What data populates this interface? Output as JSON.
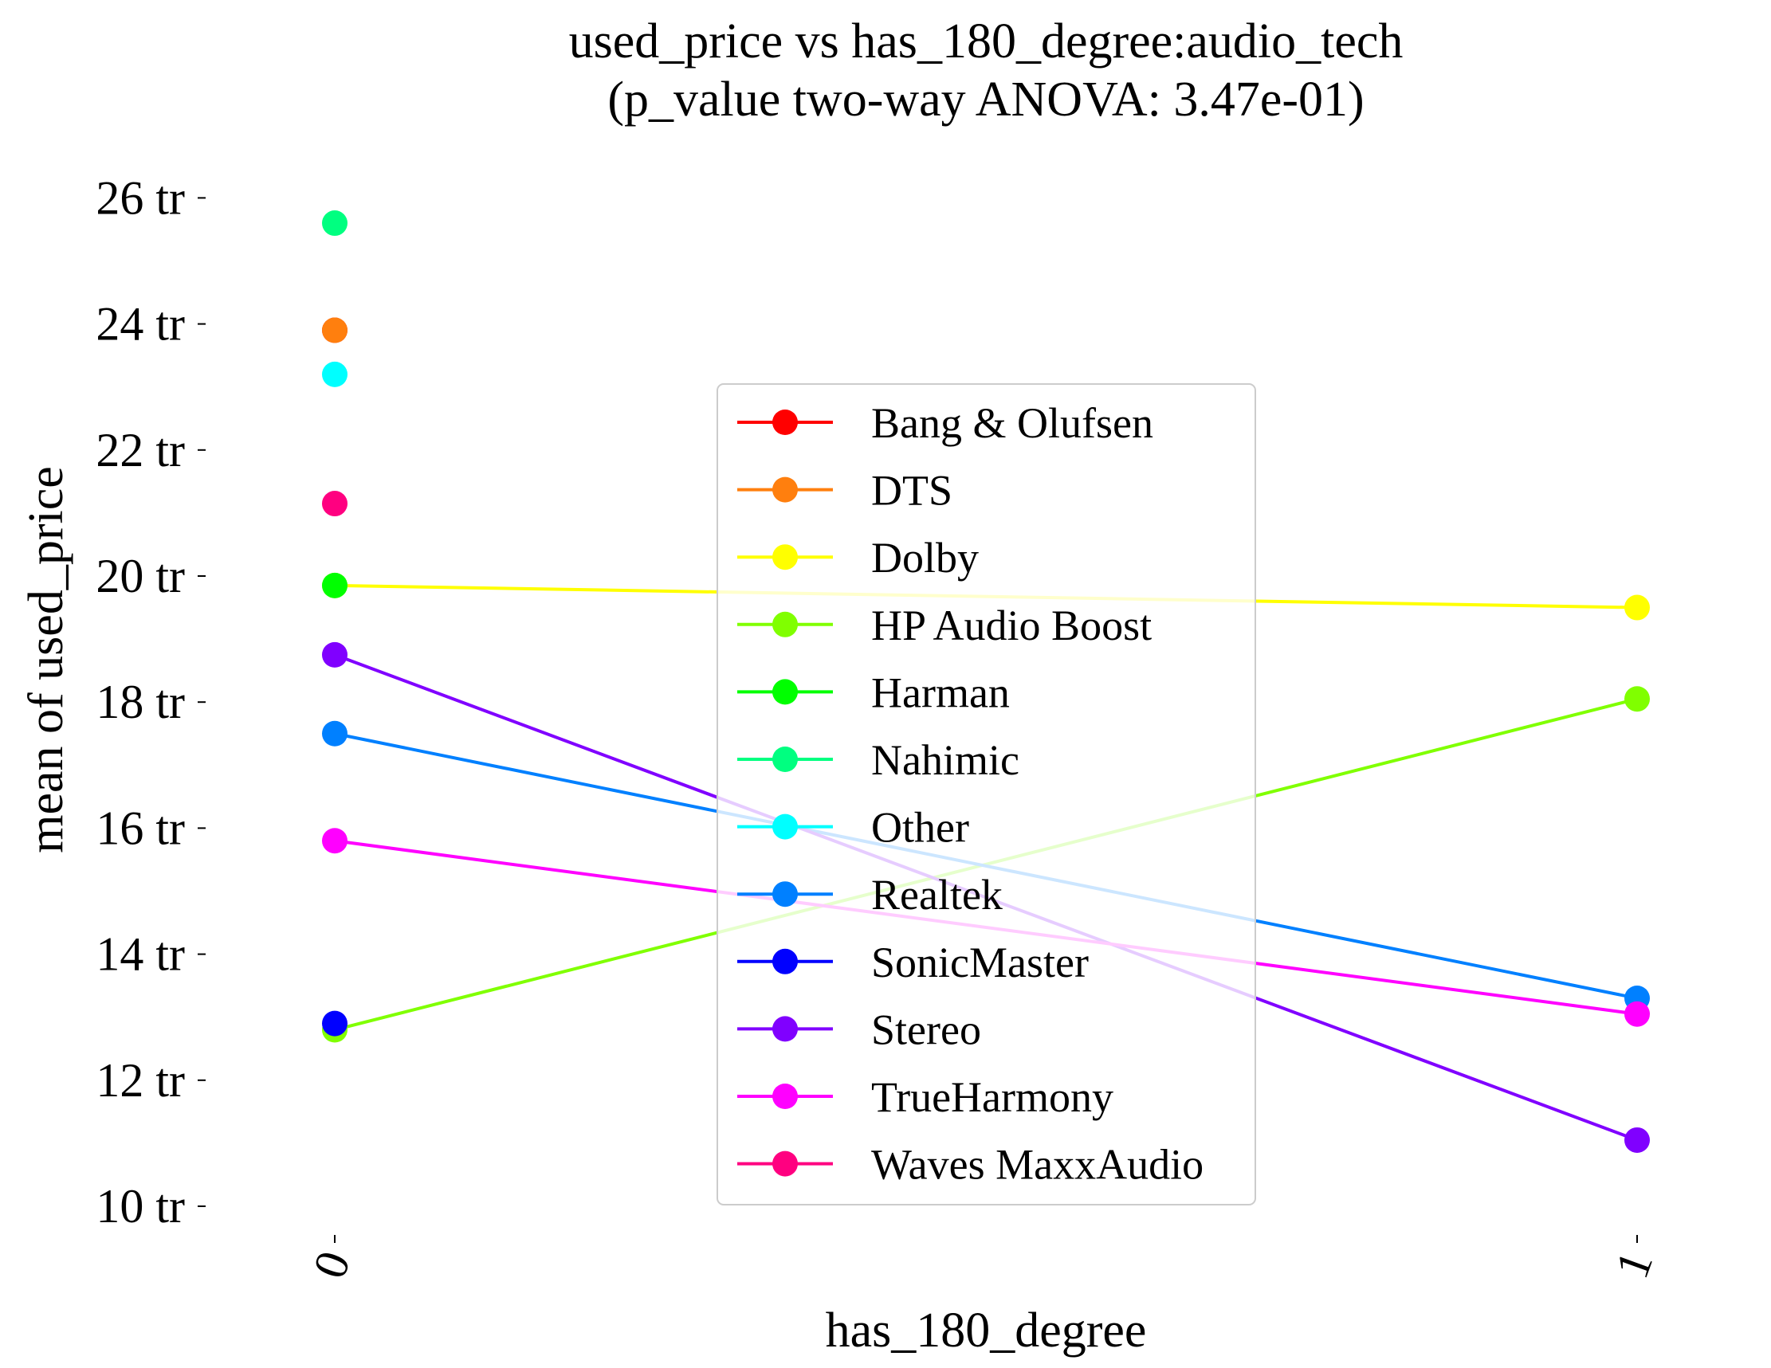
{
  "chart_data": {
    "type": "line",
    "title": "used_price vs has_180_degree:audio_tech",
    "subtitle": "(p_value two-way ANOVA: 3.47e-01)",
    "xlabel": "has_180_degree",
    "ylabel": "mean of used_price",
    "categories": [
      "0",
      "1"
    ],
    "ylim": [
      10,
      26.3
    ],
    "yticks": [
      10,
      12,
      14,
      16,
      18,
      20,
      22,
      24,
      26
    ],
    "ytick_labels": [
      "10 tr",
      "12 tr",
      "14 tr",
      "16 tr",
      "18 tr",
      "20 tr",
      "22 tr",
      "24 tr",
      "26 tr"
    ],
    "grid": false,
    "legend_position": "center",
    "series": [
      {
        "name": "Bang & Olufsen",
        "color": "#ff0000",
        "values": [
          23.9,
          null
        ]
      },
      {
        "name": "DTS",
        "color": "#ff7f0e",
        "values": [
          23.9,
          null
        ]
      },
      {
        "name": "Dolby",
        "color": "#ffff00",
        "values": [
          19.85,
          19.5
        ]
      },
      {
        "name": "HP Audio Boost",
        "color": "#80ff00",
        "values": [
          12.8,
          18.05
        ]
      },
      {
        "name": "Harman",
        "color": "#00ff00",
        "values": [
          19.85,
          null
        ]
      },
      {
        "name": "Nahimic",
        "color": "#00ff80",
        "values": [
          25.6,
          null
        ]
      },
      {
        "name": "Other",
        "color": "#00ffff",
        "values": [
          23.2,
          null
        ]
      },
      {
        "name": "Realtek",
        "color": "#0080ff",
        "values": [
          17.5,
          13.3
        ]
      },
      {
        "name": "SonicMaster",
        "color": "#0000ff",
        "values": [
          12.9,
          null
        ]
      },
      {
        "name": "Stereo",
        "color": "#8000ff",
        "values": [
          18.75,
          11.05
        ]
      },
      {
        "name": "TrueHarmony",
        "color": "#ff00ff",
        "values": [
          15.8,
          13.05
        ]
      },
      {
        "name": "Waves MaxxAudio",
        "color": "#ff0080",
        "values": [
          21.15,
          null
        ]
      }
    ]
  }
}
